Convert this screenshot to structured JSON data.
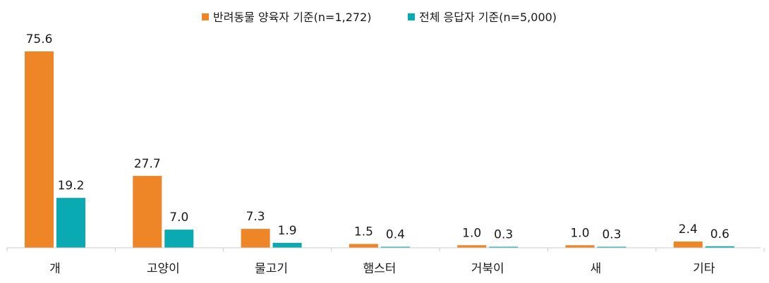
{
  "chart_data": {
    "type": "bar",
    "categories": [
      "개",
      "고양이",
      "물고기",
      "햄스터",
      "거북이",
      "새",
      "기타"
    ],
    "series": [
      {
        "name": "반려동물 양육자 기준(n=1,272)",
        "color": "#EE8527",
        "values": [
          75.6,
          27.7,
          7.3,
          1.5,
          1.0,
          1.0,
          2.4
        ]
      },
      {
        "name": "전체 응답자 기준(n=5,000)",
        "color": "#0AAAB2",
        "values": [
          19.2,
          7.0,
          1.9,
          0.4,
          0.3,
          0.3,
          0.6
        ]
      }
    ],
    "value_labels": [
      [
        "75.6",
        "27.7",
        "7.3",
        "1.5",
        "1.0",
        "1.0",
        "2.4"
      ],
      [
        "19.2",
        "7.0",
        "1.9",
        "0.4",
        "0.3",
        "0.3",
        "0.6"
      ]
    ],
    "title": "",
    "xlabel": "",
    "ylabel": "",
    "ylim": [
      0,
      75.6
    ],
    "grid": false,
    "legend_position": "top-center"
  }
}
